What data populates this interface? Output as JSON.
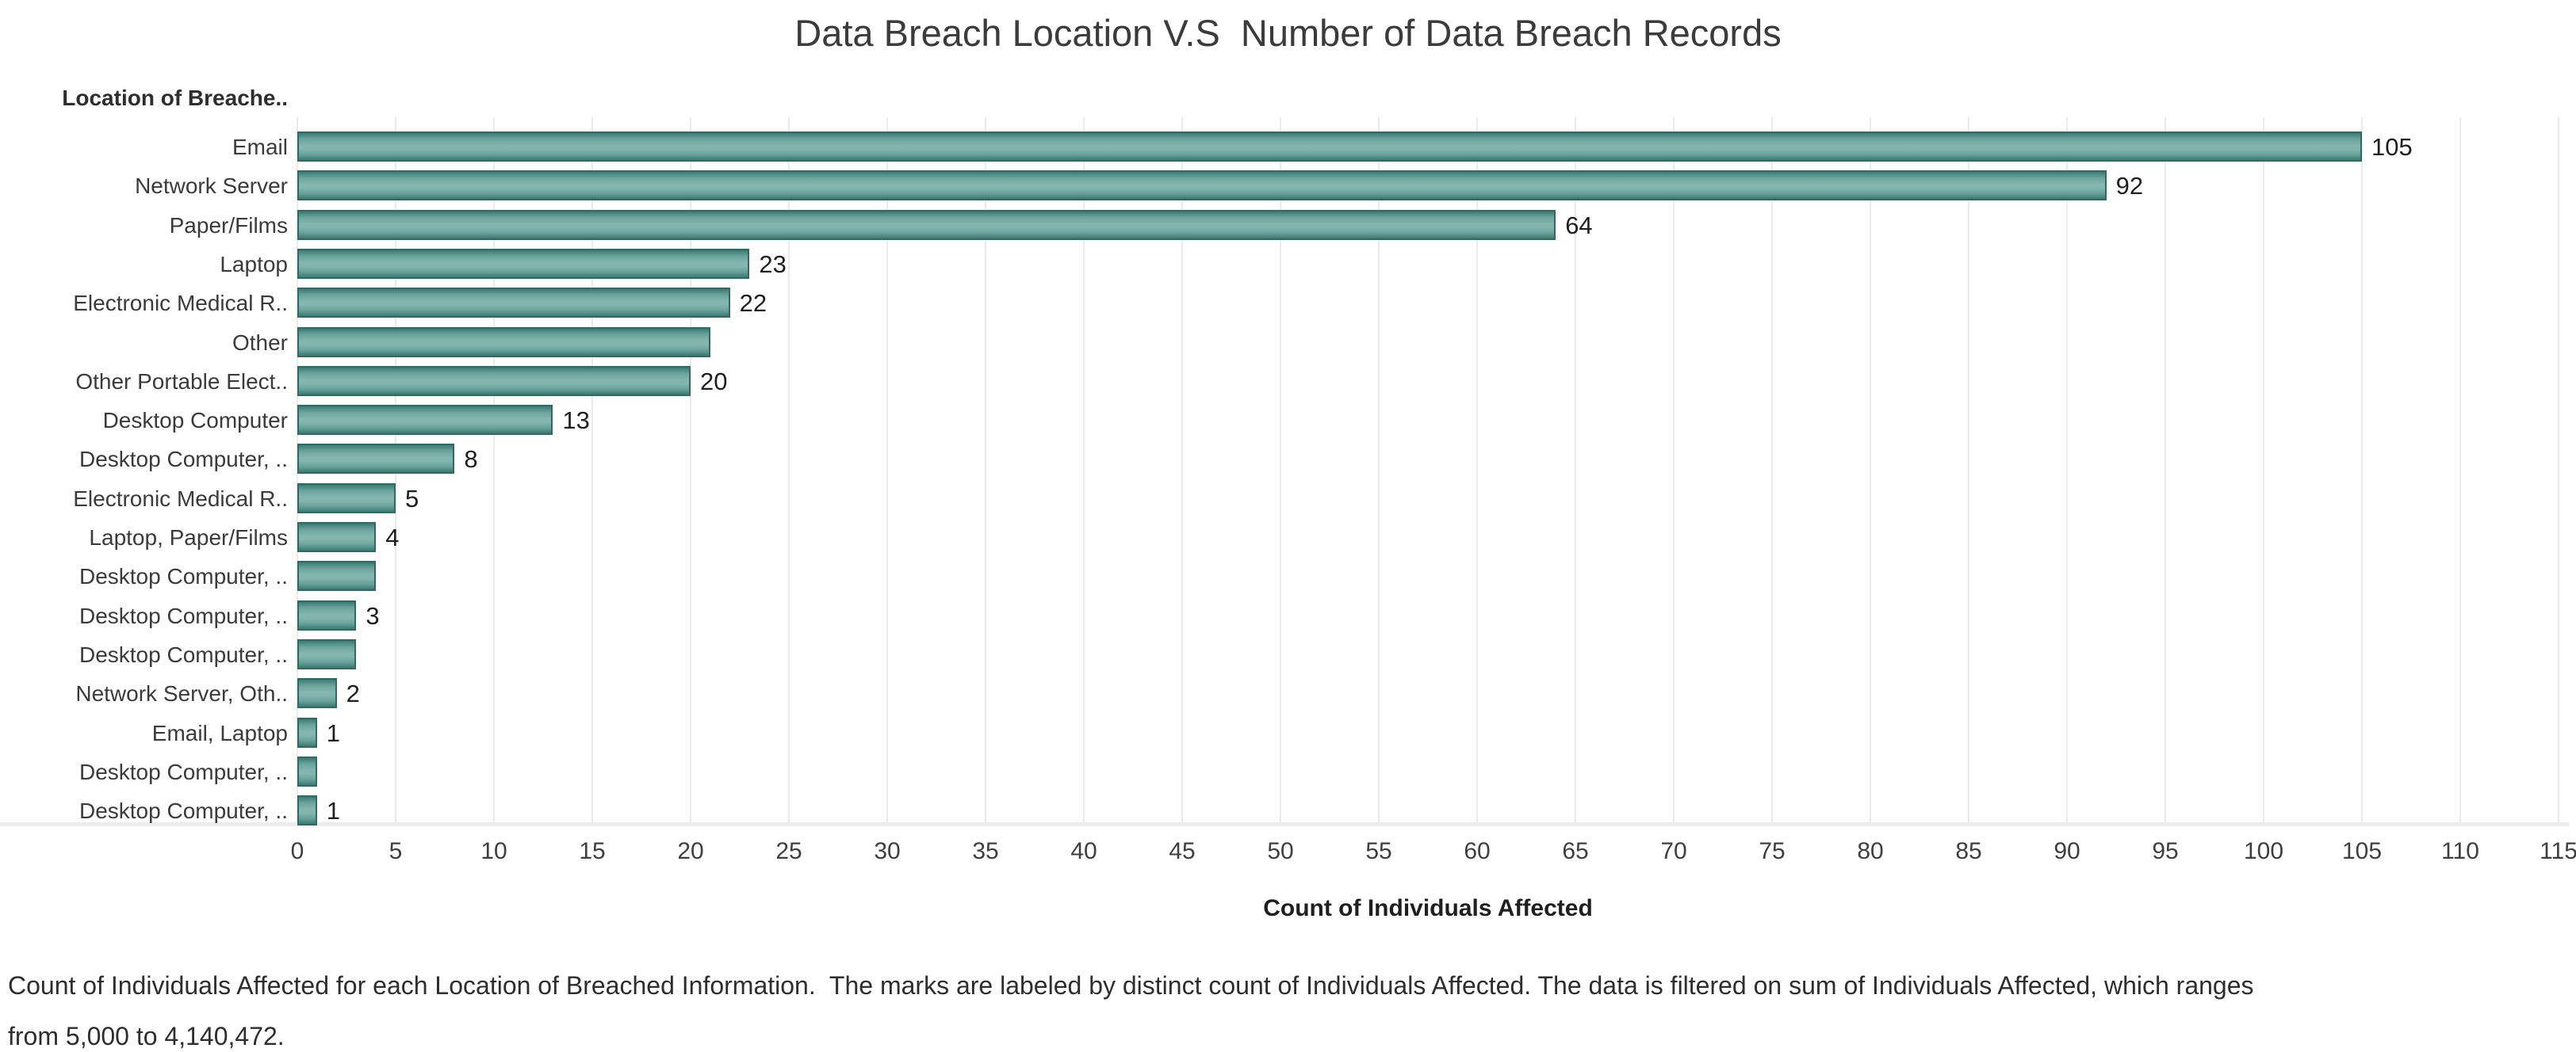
{
  "title": "Data Breach Location V.S  Number of Data Breach Records",
  "chart_data": {
    "type": "bar",
    "orientation": "horizontal",
    "title": "Data Breach Location V.S  Number of Data Breach Records",
    "row_header": "Location of Breache..",
    "xlabel": "Count of Individuals Affected",
    "ylabel": "Location of Breached Information",
    "xlim": [
      0,
      115
    ],
    "xtick_step": 5,
    "xticks": [
      0,
      5,
      10,
      15,
      20,
      25,
      30,
      35,
      40,
      45,
      50,
      55,
      60,
      65,
      70,
      75,
      80,
      85,
      90,
      95,
      100,
      105,
      110,
      115
    ],
    "grid": true,
    "legend": "none",
    "categories": [
      "Email",
      "Network Server",
      "Paper/Films",
      "Laptop",
      "Electronic Medical R..",
      "Other",
      "Other Portable Elect..",
      "Desktop Computer",
      "Desktop Computer, ..",
      "Electronic Medical R..",
      "Laptop, Paper/Films",
      "Desktop Computer, ..",
      "Desktop Computer, ..",
      "Desktop Computer, ..",
      "Network Server, Oth..",
      "Email, Laptop",
      "Desktop Computer, ..",
      "Desktop Computer, .."
    ],
    "values": [
      105,
      92,
      64,
      23,
      22,
      21,
      20,
      13,
      8,
      5,
      4,
      4,
      3,
      3,
      2,
      1,
      1,
      1
    ],
    "rows": [
      {
        "label": "Email",
        "value": 105,
        "value_label": "105"
      },
      {
        "label": "Network Server",
        "value": 92,
        "value_label": "92"
      },
      {
        "label": "Paper/Films",
        "value": 64,
        "value_label": "64"
      },
      {
        "label": "Laptop",
        "value": 23,
        "value_label": "23"
      },
      {
        "label": "Electronic Medical R..",
        "value": 22,
        "value_label": "22"
      },
      {
        "label": "Other",
        "value": 21,
        "value_label": null
      },
      {
        "label": "Other Portable Elect..",
        "value": 20,
        "value_label": "20"
      },
      {
        "label": "Desktop Computer",
        "value": 13,
        "value_label": "13"
      },
      {
        "label": "Desktop Computer, ..",
        "value": 8,
        "value_label": "8"
      },
      {
        "label": "Electronic Medical R..",
        "value": 5,
        "value_label": "5"
      },
      {
        "label": "Laptop, Paper/Films",
        "value": 4,
        "value_label": "4"
      },
      {
        "label": "Desktop Computer, ..",
        "value": 4,
        "value_label": null
      },
      {
        "label": "Desktop Computer, ..",
        "value": 3,
        "value_label": "3"
      },
      {
        "label": "Desktop Computer, ..",
        "value": 3,
        "value_label": null
      },
      {
        "label": "Network Server, Oth..",
        "value": 2,
        "value_label": "2"
      },
      {
        "label": "Email, Laptop",
        "value": 1,
        "value_label": "1"
      },
      {
        "label": "Desktop Computer, ..",
        "value": 1,
        "value_label": null
      },
      {
        "label": "Desktop Computer, ..",
        "value": 1,
        "value_label": "1"
      }
    ],
    "colors": {
      "bar_fill_light": "#84B6AF",
      "bar_fill_mid": "#6BA49D",
      "bar_border": "#2E6B64",
      "grid_line": "#EBEBEB",
      "text": "#333333"
    }
  },
  "caption": {
    "line1": "Count of Individuals Affected for each Location of Breached Information.  The marks are labeled by distinct count of Individuals Affected. The data is filtered on sum of Individuals Affected, which ranges",
    "line2": "from 5,000 to 4,140,472."
  }
}
